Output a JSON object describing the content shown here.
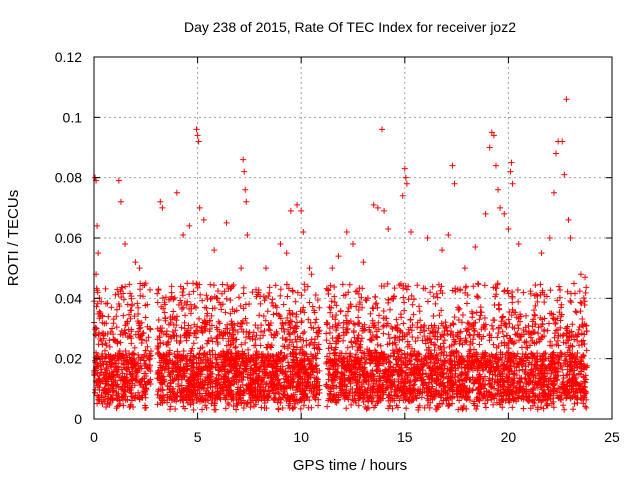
{
  "chart_data": {
    "type": "scatter",
    "title": "Day 238 of 2015, Rate Of TEC Index for receiver joz2",
    "xlabel": "GPS time / hours",
    "ylabel": "ROTI / TECUs",
    "xlim": [
      0,
      25
    ],
    "ylim": [
      0,
      0.12
    ],
    "x_ticks": [
      "0",
      "5",
      "10",
      "15",
      "20",
      "25"
    ],
    "y_ticks": [
      "0",
      "0.02",
      "0.04",
      "0.06",
      "0.08",
      "0.1",
      "0.12"
    ],
    "grid": true,
    "marker": "+",
    "color": "#ff0000",
    "series": [
      {
        "points": [
          [
            0.0,
            0.032
          ],
          [
            0.05,
            0.08
          ],
          [
            0.1,
            0.079
          ],
          [
            0.15,
            0.064
          ],
          [
            0.2,
            0.055
          ],
          [
            0.1,
            0.048
          ],
          [
            1.2,
            0.079
          ],
          [
            1.3,
            0.072
          ],
          [
            1.5,
            0.058
          ],
          [
            2.0,
            0.052
          ],
          [
            2.2,
            0.05
          ],
          [
            2.5,
            0.045
          ],
          [
            3.2,
            0.072
          ],
          [
            3.3,
            0.07
          ],
          [
            4.0,
            0.075
          ],
          [
            4.3,
            0.061
          ],
          [
            4.6,
            0.064
          ],
          [
            4.95,
            0.096
          ],
          [
            5.0,
            0.094
          ],
          [
            5.05,
            0.092
          ],
          [
            5.1,
            0.07
          ],
          [
            5.3,
            0.066
          ],
          [
            5.8,
            0.056
          ],
          [
            6.4,
            0.065
          ],
          [
            7.1,
            0.05
          ],
          [
            7.2,
            0.086
          ],
          [
            7.25,
            0.082
          ],
          [
            7.3,
            0.076
          ],
          [
            7.35,
            0.072
          ],
          [
            7.4,
            0.061
          ],
          [
            8.3,
            0.05
          ],
          [
            9.0,
            0.058
          ],
          [
            9.3,
            0.055
          ],
          [
            9.5,
            0.069
          ],
          [
            9.8,
            0.071
          ],
          [
            10.0,
            0.069
          ],
          [
            10.1,
            0.062
          ],
          [
            10.4,
            0.05
          ],
          [
            10.5,
            0.048
          ],
          [
            11.5,
            0.05
          ],
          [
            11.8,
            0.054
          ],
          [
            12.2,
            0.062
          ],
          [
            12.5,
            0.058
          ],
          [
            13.0,
            0.052
          ],
          [
            13.5,
            0.071
          ],
          [
            13.7,
            0.07
          ],
          [
            13.9,
            0.096
          ],
          [
            14.0,
            0.069
          ],
          [
            14.2,
            0.063
          ],
          [
            14.9,
            0.074
          ],
          [
            15.0,
            0.083
          ],
          [
            15.05,
            0.08
          ],
          [
            15.1,
            0.078
          ],
          [
            15.3,
            0.062
          ],
          [
            16.1,
            0.06
          ],
          [
            16.8,
            0.056
          ],
          [
            17.1,
            0.061
          ],
          [
            17.3,
            0.084
          ],
          [
            17.4,
            0.078
          ],
          [
            17.9,
            0.05
          ],
          [
            18.4,
            0.057
          ],
          [
            18.9,
            0.068
          ],
          [
            19.1,
            0.09
          ],
          [
            19.2,
            0.095
          ],
          [
            19.3,
            0.094
          ],
          [
            19.4,
            0.084
          ],
          [
            19.5,
            0.076
          ],
          [
            19.6,
            0.07
          ],
          [
            19.8,
            0.068
          ],
          [
            20.0,
            0.063
          ],
          [
            20.1,
            0.082
          ],
          [
            20.15,
            0.085
          ],
          [
            20.2,
            0.078
          ],
          [
            20.5,
            0.058
          ],
          [
            21.6,
            0.055
          ],
          [
            22.0,
            0.06
          ],
          [
            22.2,
            0.075
          ],
          [
            22.3,
            0.088
          ],
          [
            22.4,
            0.092
          ],
          [
            22.6,
            0.092
          ],
          [
            22.7,
            0.081
          ],
          [
            22.8,
            0.106
          ],
          [
            22.9,
            0.066
          ],
          [
            23.0,
            0.06
          ],
          [
            23.5,
            0.048
          ],
          [
            23.7,
            0.047
          ]
        ]
      }
    ],
    "dense_band": {
      "description": "bulk of points",
      "y_range": [
        0.003,
        0.045
      ],
      "gaps_hours": [
        [
          2.75,
          3.05
        ],
        [
          10.9,
          11.2
        ]
      ],
      "x_range": [
        0,
        23.8
      ]
    }
  }
}
